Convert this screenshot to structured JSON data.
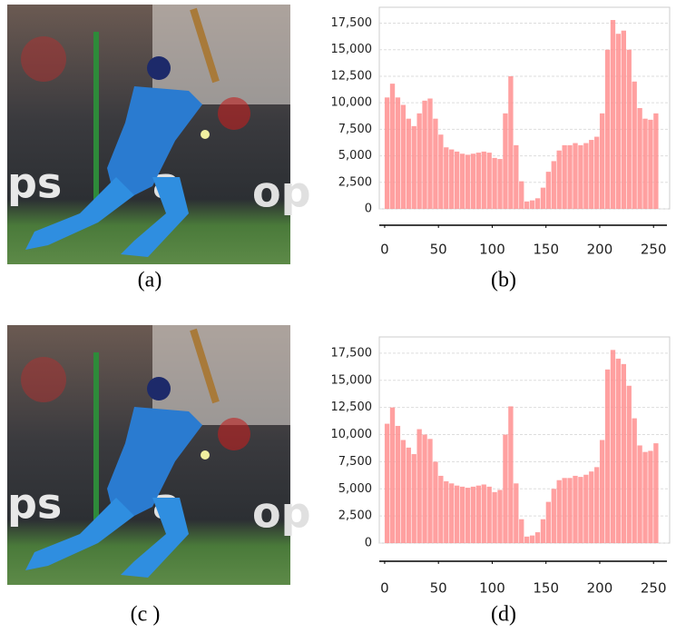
{
  "captions": [
    "(a)",
    "(b)",
    "(c )",
    "(d)"
  ],
  "chart_data": [
    {
      "type": "histogram",
      "color": "#ff8f8f",
      "grid": true,
      "bins": [
        0,
        5,
        10,
        15,
        20,
        25,
        30,
        35,
        40,
        45,
        50,
        55,
        60,
        65,
        70,
        75,
        80,
        85,
        90,
        95,
        100,
        105,
        110,
        115,
        120,
        125,
        130,
        135,
        140,
        145,
        150,
        155,
        160,
        165,
        170,
        175,
        180,
        185,
        190,
        195,
        200,
        205,
        210,
        215,
        220,
        225,
        230,
        235,
        240,
        245,
        250,
        255
      ],
      "values": [
        10500,
        11800,
        10500,
        9800,
        8500,
        7800,
        9000,
        10200,
        10400,
        8500,
        7000,
        5800,
        5600,
        5400,
        5200,
        5100,
        5200,
        5300,
        5400,
        5300,
        4800,
        4700,
        9000,
        12500,
        6000,
        2600,
        700,
        800,
        1000,
        2000,
        3500,
        4500,
        5500,
        6000,
        6000,
        6200,
        6000,
        6200,
        6500,
        6800,
        9000,
        15000,
        17800,
        16500,
        16800,
        15000,
        12000,
        9500,
        8500,
        8400,
        9000
      ],
      "xlim": [
        -5,
        265
      ],
      "ylim": [
        0,
        19000
      ],
      "xticks": [
        0,
        50,
        100,
        150,
        200,
        250
      ],
      "yticks": [
        0,
        {
          "value": 2500,
          "label": "2,500"
        },
        {
          "value": 5000,
          "label": "5,000"
        },
        {
          "value": 7500,
          "label": "7,500"
        },
        {
          "value": 10000,
          "label": "10,000"
        },
        {
          "value": 12500,
          "label": "12,500"
        },
        {
          "value": 15000,
          "label": "15,000"
        },
        {
          "value": 17500,
          "label": "17,500"
        }
      ]
    },
    {
      "type": "histogram",
      "color": "#ff8f8f",
      "grid": true,
      "bins": [
        0,
        5,
        10,
        15,
        20,
        25,
        30,
        35,
        40,
        45,
        50,
        55,
        60,
        65,
        70,
        75,
        80,
        85,
        90,
        95,
        100,
        105,
        110,
        115,
        120,
        125,
        130,
        135,
        140,
        145,
        150,
        155,
        160,
        165,
        170,
        175,
        180,
        185,
        190,
        195,
        200,
        205,
        210,
        215,
        220,
        225,
        230,
        235,
        240,
        245,
        250,
        255
      ],
      "values": [
        11000,
        12500,
        10800,
        9500,
        8800,
        8200,
        10500,
        10000,
        9600,
        7500,
        6200,
        5700,
        5500,
        5300,
        5200,
        5100,
        5200,
        5300,
        5400,
        5200,
        4700,
        4900,
        10000,
        12600,
        5500,
        2200,
        600,
        700,
        1000,
        2200,
        3800,
        5000,
        5800,
        6000,
        6000,
        6200,
        6100,
        6300,
        6600,
        7000,
        9500,
        16000,
        17800,
        17000,
        16500,
        14500,
        11500,
        9000,
        8400,
        8500,
        9200
      ],
      "xlim": [
        -5,
        265
      ],
      "ylim": [
        0,
        19000
      ],
      "xticks": [
        0,
        50,
        100,
        150,
        200,
        250
      ],
      "yticks": [
        0,
        {
          "value": 2500,
          "label": "2,500"
        },
        {
          "value": 5000,
          "label": "5,000"
        },
        {
          "value": 7500,
          "label": "7,500"
        },
        {
          "value": 10000,
          "label": "10,000"
        },
        {
          "value": 12500,
          "label": "12,500"
        },
        {
          "value": 15000,
          "label": "15,000"
        },
        {
          "value": 17500,
          "label": "17,500"
        }
      ]
    }
  ]
}
